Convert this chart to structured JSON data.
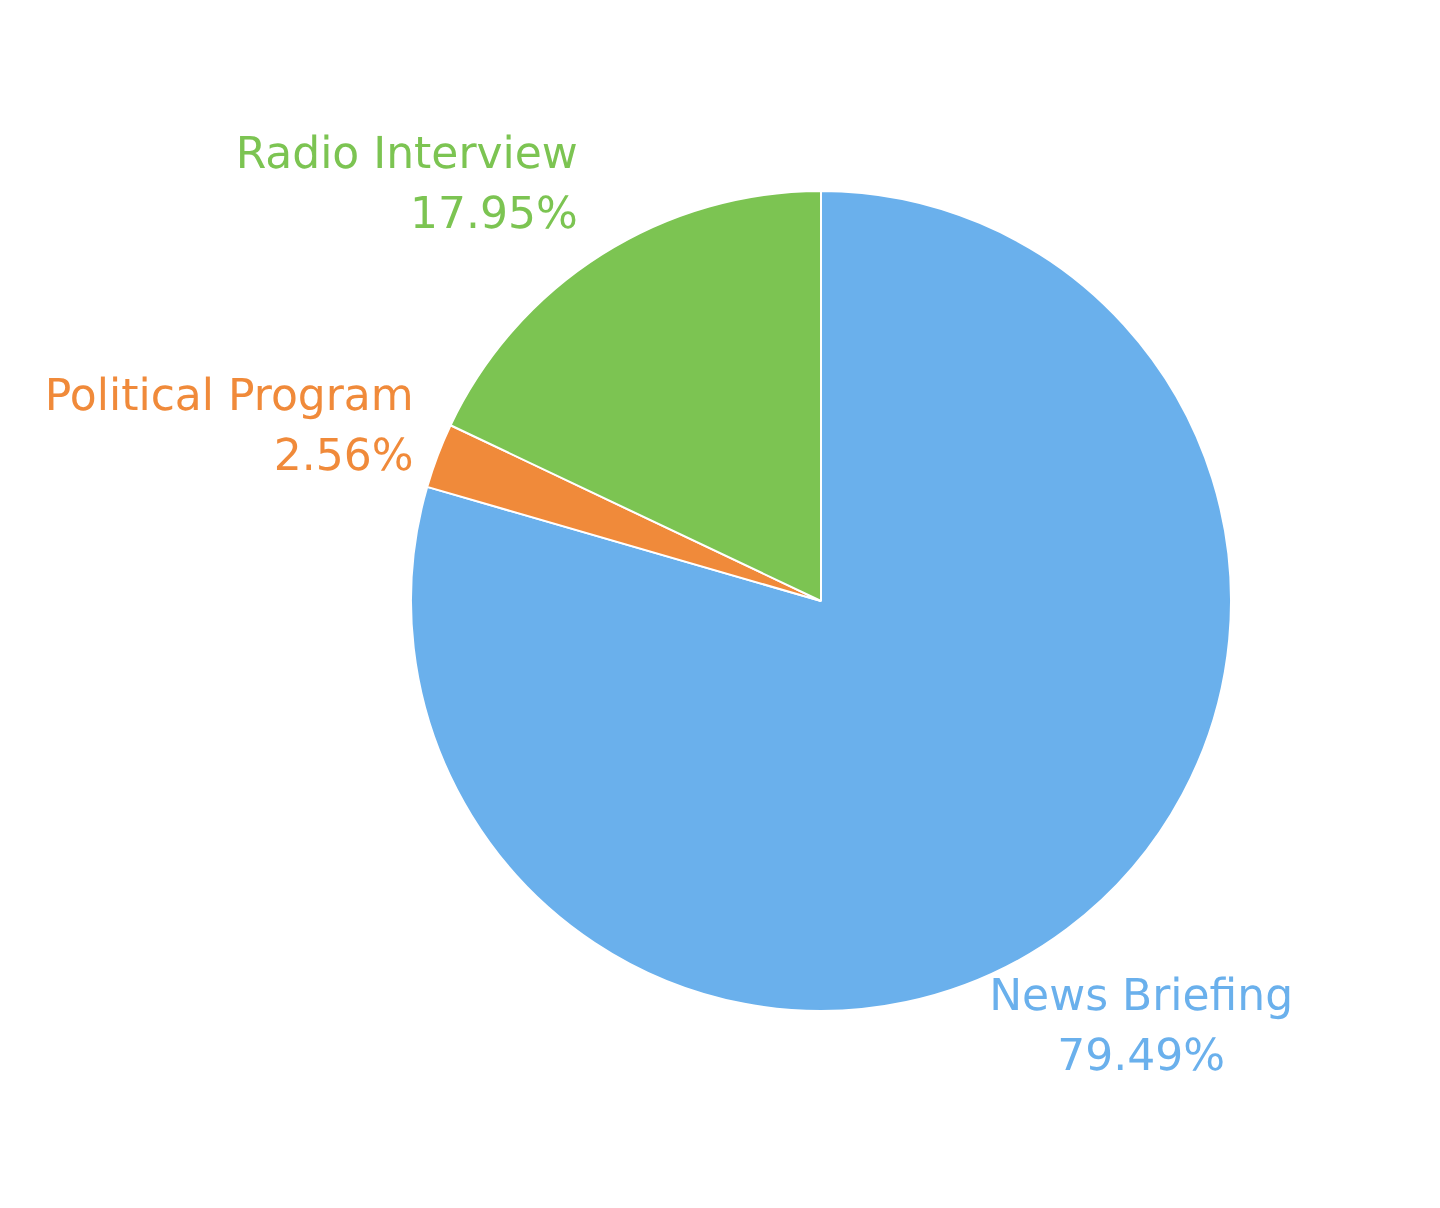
{
  "chart_data": {
    "type": "pie",
    "categories": [
      "News Briefing",
      "Political Program",
      "Radio Interview"
    ],
    "values": [
      79.49,
      2.56,
      17.95
    ],
    "colors": [
      "#6ab0ec",
      "#f08a3a",
      "#7cc452"
    ],
    "value_labels": [
      "79.49%",
      "2.56%",
      "17.95%"
    ]
  }
}
